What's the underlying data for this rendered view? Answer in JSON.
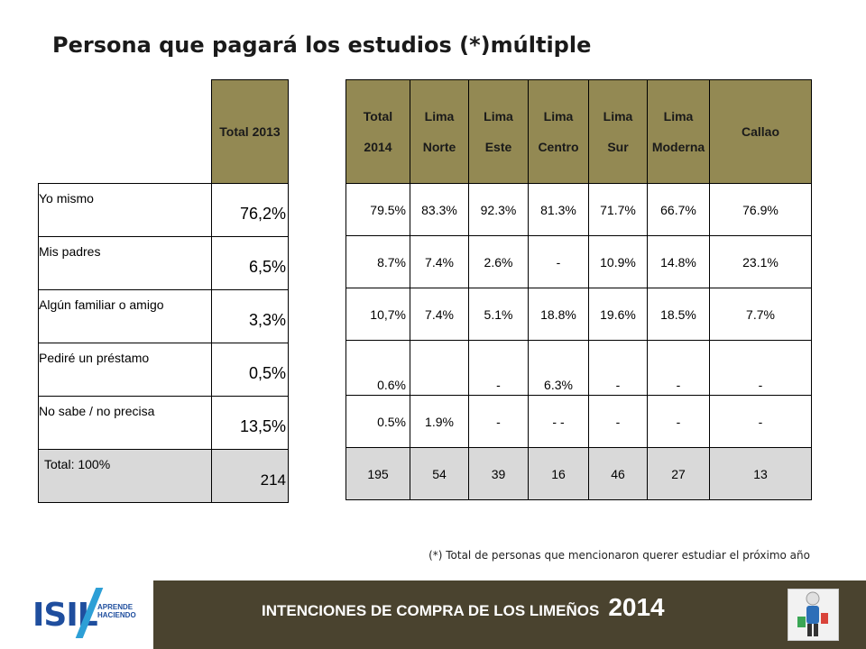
{
  "title": "Persona que pagará los estudios (*)múltiple",
  "table_2013": {
    "header": "Total 2013",
    "rows": [
      {
        "label": "Yo mismo",
        "value": "76,2%"
      },
      {
        "label": "Mis padres",
        "value": "6,5%"
      },
      {
        "label": "Algún familiar o amigo",
        "value": "3,3%"
      },
      {
        "label": "Pediré un préstamo",
        "value": "0,5%"
      },
      {
        "label": "No sabe / no precisa",
        "value": "13,5%"
      },
      {
        "label": "Total: 100%",
        "value": "214"
      }
    ]
  },
  "table_2014": {
    "headers": [
      {
        "line1": "Total",
        "line2": "2014"
      },
      {
        "line1": "Lima",
        "line2": "Norte"
      },
      {
        "line1": "Lima",
        "line2": "Este"
      },
      {
        "line1": "Lima",
        "line2": "Centro"
      },
      {
        "line1": "Lima",
        "line2": "Sur"
      },
      {
        "line1": "Lima",
        "line2": "Moderna"
      },
      {
        "line1": "Callao",
        "line2": ""
      }
    ],
    "rows": [
      [
        "79.5%",
        "83.3%",
        "92.3%",
        "81.3%",
        "71.7%",
        "66.7%",
        "76.9%"
      ],
      [
        "8.7%",
        "7.4%",
        "2.6%",
        "-",
        "10.9%",
        "14.8%",
        "23.1%"
      ],
      [
        "10,7%",
        "7.4%",
        "5.1%",
        "18.8%",
        "19.6%",
        "18.5%",
        "7.7%"
      ],
      [
        "0.6%",
        "",
        "-",
        "6.3%",
        "-",
        "-",
        "-"
      ],
      [
        "0.5%",
        "1.9%",
        "-",
        "- -",
        "-",
        "-",
        "-"
      ],
      [
        "195",
        "54",
        "39",
        "16",
        "46",
        "27",
        "13"
      ]
    ]
  },
  "note": "(*) Total de personas que mencionaron querer estudiar el próximo año",
  "footer": {
    "logo_text": "ISIL",
    "logo_tagline_1": "APRENDE",
    "logo_tagline_2": "HACIENDO",
    "title": "INTENCIONES DE COMPRA DE LOS LIMEÑOS",
    "year": "2014"
  },
  "colors": {
    "header_fill": "#938953",
    "total_fill": "#d9d9d9",
    "footer_bar": "#4a432f",
    "logo_blue": "#1f4e9e",
    "logo_accent": "#2d9fd6"
  }
}
